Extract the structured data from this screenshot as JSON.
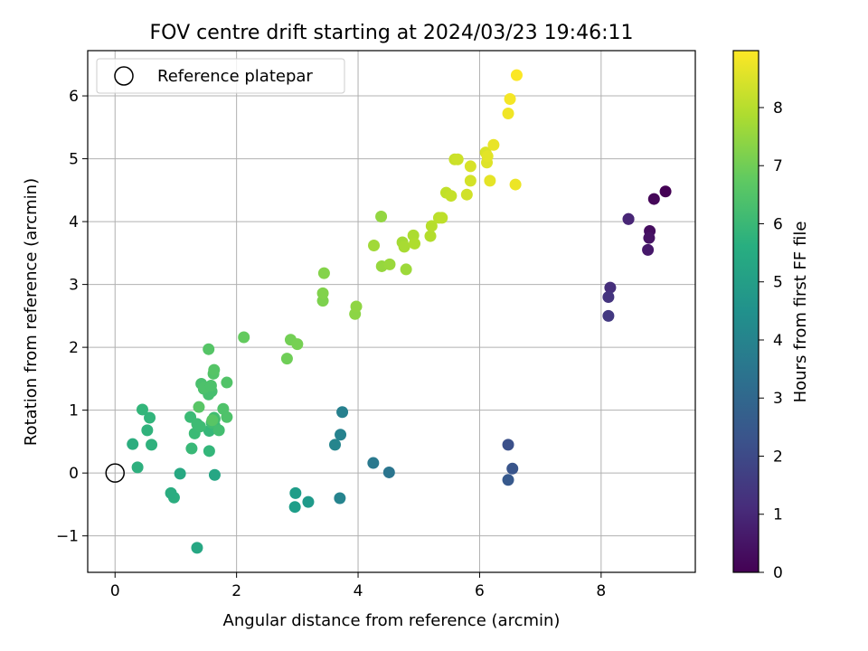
{
  "chart_data": {
    "type": "scatter",
    "title": "FOV centre drift starting at 2024/03/23 19:46:11",
    "xlabel": "Angular distance from reference (arcmin)",
    "ylabel": "Rotation from reference (arcmin)",
    "xlim": [
      -0.45,
      9.55
    ],
    "ylim": [
      -1.58,
      6.72
    ],
    "xticks": [
      0,
      2,
      4,
      6,
      8
    ],
    "yticks": [
      -1,
      0,
      1,
      2,
      3,
      4,
      5,
      6
    ],
    "ytick_labels": [
      "−1",
      "0",
      "1",
      "2",
      "3",
      "4",
      "5",
      "6"
    ],
    "grid": true,
    "legend": {
      "position": "upper-left",
      "entries": [
        "Reference platepar"
      ]
    },
    "reference_point": {
      "x": 0,
      "y": 0
    },
    "colorbar": {
      "label": "Hours from first FF file",
      "min": 0,
      "max": 8.98,
      "ticks": [
        0,
        1,
        2,
        3,
        4,
        5,
        6,
        7,
        8
      ],
      "colormap": "viridis"
    },
    "series": [
      {
        "x": [
          9.06,
          8.87,
          8.8,
          8.79,
          8.77,
          8.45,
          8.45,
          8.15,
          8.12,
          8.12,
          6.47,
          6.54,
          6.47,
          4.51,
          4.25,
          3.74,
          3.71,
          3.7,
          3.62,
          3.18,
          2.97,
          2.96,
          1.64,
          1.35,
          1.07,
          0.97,
          0.92,
          0.29,
          0.37,
          0.6,
          0.53,
          0.57,
          0.45,
          1.55,
          1.55,
          1.64,
          1.26,
          1.24,
          1.31,
          1.35,
          1.4,
          1.59,
          1.63,
          1.64,
          1.71,
          1.59,
          1.54,
          1.46,
          1.42,
          1.46,
          1.58,
          1.78,
          1.84,
          1.84,
          1.62,
          1.63,
          1.54,
          1.6,
          1.38,
          2.12,
          2.83,
          2.89,
          3.0,
          3.42,
          3.42,
          3.44,
          3.95,
          3.97,
          4.38,
          4.39,
          4.52,
          4.79,
          4.26,
          4.73,
          4.76,
          4.91,
          4.93,
          5.19,
          5.21,
          5.33,
          5.38,
          5.45,
          5.53,
          5.59,
          5.64,
          5.79,
          5.85,
          5.85,
          6.1,
          6.12,
          6.13,
          6.17,
          6.23,
          6.59,
          6.47,
          6.5,
          6.61
        ],
        "y": [
          4.48,
          4.36,
          3.85,
          3.74,
          3.55,
          4.04,
          4.04,
          2.95,
          2.8,
          2.5,
          0.45,
          0.07,
          -0.11,
          0.01,
          0.16,
          0.97,
          0.61,
          -0.4,
          0.45,
          -0.46,
          -0.32,
          -0.54,
          -0.03,
          -1.19,
          -0.01,
          -0.39,
          -0.32,
          0.46,
          0.09,
          0.45,
          0.68,
          0.88,
          1.01,
          0.35,
          0.67,
          0.75,
          0.39,
          0.89,
          0.63,
          0.78,
          0.74,
          0.8,
          0.88,
          0.86,
          0.68,
          1.3,
          1.25,
          1.34,
          1.42,
          1.36,
          1.39,
          1.02,
          0.89,
          1.44,
          1.58,
          1.64,
          1.97,
          0.84,
          1.05,
          2.16,
          1.82,
          2.12,
          2.05,
          2.74,
          2.86,
          3.18,
          2.53,
          2.65,
          4.08,
          3.29,
          3.32,
          3.24,
          3.62,
          3.67,
          3.6,
          3.78,
          3.65,
          3.77,
          3.93,
          4.06,
          4.06,
          4.46,
          4.41,
          4.99,
          4.99,
          4.43,
          4.65,
          4.88,
          5.1,
          4.94,
          5.04,
          4.65,
          5.22,
          4.59,
          5.72,
          5.95,
          6.33
        ],
        "c": [
          0.0,
          0.15,
          0.3,
          0.45,
          0.6,
          0.9,
          0.95,
          1.2,
          1.35,
          1.5,
          2.2,
          2.35,
          2.5,
          3.5,
          3.65,
          3.9,
          4.0,
          4.05,
          4.1,
          4.85,
          4.95,
          5.0,
          5.3,
          5.35,
          5.4,
          5.6,
          5.55,
          5.6,
          5.65,
          5.75,
          5.8,
          5.85,
          5.9,
          5.95,
          6.0,
          6.05,
          6.05,
          6.1,
          6.1,
          6.15,
          6.15,
          6.2,
          6.2,
          6.25,
          6.25,
          6.3,
          6.3,
          6.35,
          6.35,
          6.4,
          6.4,
          6.45,
          6.45,
          6.5,
          6.5,
          6.55,
          6.55,
          6.6,
          6.6,
          6.8,
          7.0,
          7.05,
          7.1,
          7.2,
          7.25,
          7.3,
          7.4,
          7.45,
          7.5,
          7.55,
          7.6,
          7.65,
          7.7,
          7.75,
          7.8,
          7.85,
          7.9,
          7.95,
          8.0,
          8.05,
          8.1,
          8.15,
          8.2,
          8.25,
          8.3,
          8.35,
          8.4,
          8.45,
          8.5,
          8.55,
          8.6,
          8.65,
          8.7,
          8.75,
          8.8,
          8.85,
          8.95
        ]
      }
    ]
  }
}
